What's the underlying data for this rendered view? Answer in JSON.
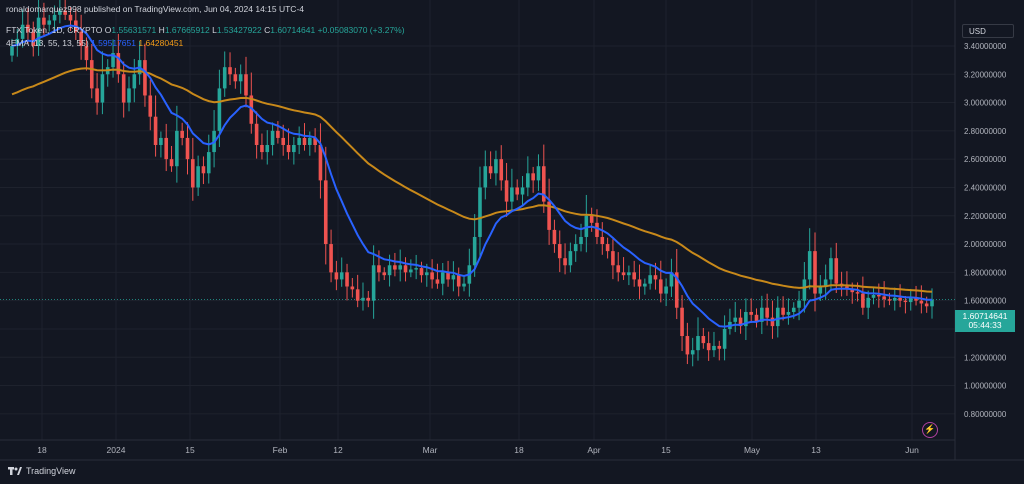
{
  "header": {
    "published": "ronaldomarquez998 published on TradingView.com, Jun 04, 2024 14:15 UTC-4",
    "symbol": "FTX Token, 1D, CRYPTO",
    "o_label": "O",
    "o_value": "1.55631571",
    "h_label": "H",
    "h_value": "1.67665912",
    "l_label": "L",
    "l_value": "1.53427922",
    "c_label": "C",
    "c_value": "1.60714641",
    "change": "+0.05083070 (+3.27%)",
    "ema_label": "4EMA (13, 55, 13, 55)",
    "ema_value1": "1.59517651",
    "ema_value2": "1.64280451"
  },
  "currency_button": "USD",
  "price_tag": {
    "price": "1.60714641",
    "countdown": "05:44:33"
  },
  "footer": {
    "brand": "TradingView"
  },
  "colors": {
    "up": "#26a69a",
    "down": "#ef5350",
    "ema_fast": "#2962ff",
    "ema_slow": "#c8891a",
    "bg": "#131722"
  },
  "chart_data": {
    "type": "candlestick",
    "title": "FTX Token, 1D, CRYPTO",
    "ylim": [
      0.7,
      3.7
    ],
    "y_ticks": [
      "0.80000000",
      "1.00000000",
      "1.20000000",
      "1.40000000",
      "1.60000000",
      "1.80000000",
      "2.00000000",
      "2.20000000",
      "2.40000000",
      "2.60000000",
      "2.80000000",
      "3.00000000",
      "3.20000000",
      "3.40000000"
    ],
    "x_ticks": [
      "18",
      "2024",
      "15",
      "Feb",
      "12",
      "Mar",
      "18",
      "Apr",
      "15",
      "May",
      "13",
      "Jun"
    ],
    "last_price": 1.607,
    "closes": [
      3.4,
      3.45,
      3.55,
      3.5,
      3.4,
      3.6,
      3.55,
      3.58,
      3.62,
      3.65,
      3.62,
      3.58,
      3.5,
      3.4,
      3.3,
      3.1,
      3.0,
      3.2,
      3.25,
      3.35,
      3.2,
      3.0,
      3.1,
      3.2,
      3.3,
      3.05,
      2.9,
      2.7,
      2.75,
      2.6,
      2.55,
      2.8,
      2.75,
      2.6,
      2.4,
      2.55,
      2.5,
      2.65,
      2.8,
      3.1,
      3.25,
      3.2,
      3.15,
      3.2,
      3.05,
      2.85,
      2.7,
      2.65,
      2.7,
      2.8,
      2.75,
      2.7,
      2.65,
      2.7,
      2.75,
      2.7,
      2.75,
      2.7,
      2.45,
      2.0,
      1.8,
      1.75,
      1.8,
      1.7,
      1.68,
      1.6,
      1.62,
      1.6,
      1.85,
      1.8,
      1.78,
      1.85,
      1.82,
      1.85,
      1.8,
      1.82,
      1.83,
      1.78,
      1.8,
      1.75,
      1.72,
      1.8,
      1.75,
      1.78,
      1.7,
      1.72,
      1.85,
      2.05,
      2.4,
      2.55,
      2.5,
      2.6,
      2.45,
      2.3,
      2.4,
      2.35,
      2.4,
      2.5,
      2.45,
      2.55,
      2.3,
      2.1,
      2.0,
      1.9,
      1.85,
      1.95,
      2.0,
      2.05,
      2.2,
      2.15,
      2.05,
      2.0,
      1.95,
      1.85,
      1.8,
      1.78,
      1.8,
      1.75,
      1.7,
      1.72,
      1.78,
      1.75,
      1.65,
      1.7,
      1.8,
      1.55,
      1.35,
      1.22,
      1.25,
      1.35,
      1.3,
      1.25,
      1.28,
      1.26,
      1.4,
      1.45,
      1.48,
      1.42,
      1.52,
      1.5,
      1.45,
      1.55,
      1.48,
      1.42,
      1.55,
      1.5,
      1.52,
      1.55,
      1.6,
      1.75,
      1.95,
      1.65,
      1.7,
      1.75,
      1.9,
      1.72,
      1.7,
      1.68,
      1.66,
      1.65,
      1.55,
      1.62,
      1.64,
      1.63,
      1.61,
      1.6,
      1.62,
      1.6,
      1.59,
      1.62,
      1.6,
      1.58,
      1.56,
      1.607
    ]
  }
}
